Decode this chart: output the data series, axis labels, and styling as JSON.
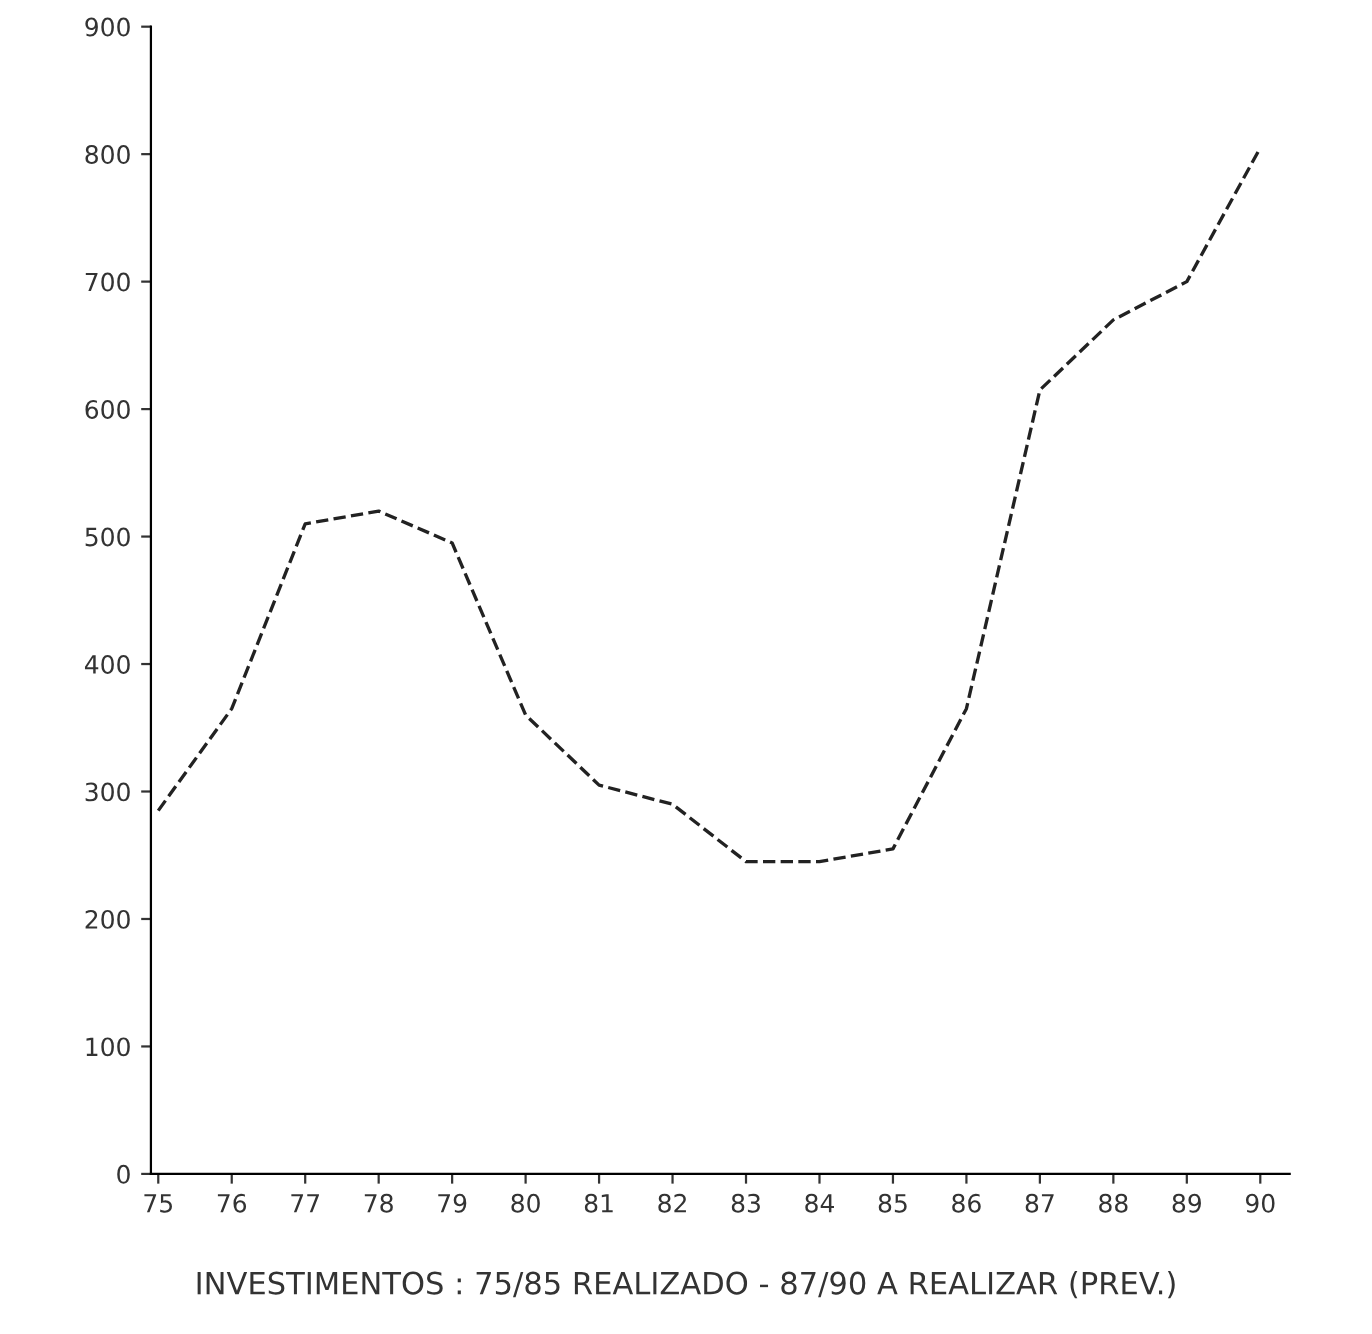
{
  "chart_data": {
    "type": "line",
    "categories": [
      "75",
      "76",
      "77",
      "78",
      "79",
      "80",
      "81",
      "82",
      "83",
      "84",
      "85",
      "86",
      "87",
      "88",
      "89",
      "90"
    ],
    "series": [
      {
        "color": "#222222",
        "values": [
          285,
          365,
          510,
          520,
          495,
          360,
          305,
          290,
          245,
          245,
          255,
          365,
          615,
          670,
          700,
          805
        ]
      }
    ],
    "ylim": [
      0,
      900
    ],
    "yticks": [
      0,
      100,
      200,
      300,
      400,
      500,
      600,
      700,
      800,
      900
    ],
    "line_style": "dashed",
    "marker": "none",
    "grid": false,
    "legend": false,
    "annotations": [
      "INVESTIMENTOS : 75/85 REALIZADO - 87/90 A REALIZAR (PREV.)"
    ]
  }
}
